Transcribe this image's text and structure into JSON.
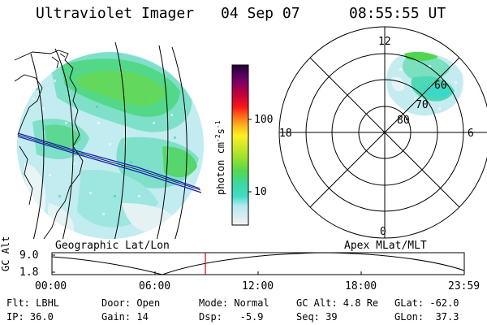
{
  "header": {
    "title": "Ultraviolet Imager",
    "date": "04 Sep 07",
    "time": "08:55:55 UT"
  },
  "geo_panel": {
    "label": "Geographic Lat/Lon"
  },
  "colorbar": {
    "unit": "photon cm",
    "unit_sup1": "-2",
    "unit_s": "s",
    "unit_sup2": "-1",
    "ticks": [
      "100",
      "10"
    ],
    "scale": "log",
    "colors": [
      "#f0f0f0",
      "#e0f0f4",
      "#c8ecf0",
      "#7de6dc",
      "#34dcc8",
      "#3fd8a8",
      "#4ed86a",
      "#78de3a",
      "#a8e42a",
      "#d8ec28",
      "#fff020",
      "#ffc01e",
      "#ff8e1a",
      "#ff3a14",
      "#e40c1e",
      "#b4004a",
      "#70006a",
      "#2c004a"
    ]
  },
  "polar_panel": {
    "label": "Apex MLat/MLT",
    "mlt_labels": {
      "top": "12",
      "bottom": "0",
      "left": "18",
      "right": "6"
    },
    "lat_labels": [
      "60",
      "70",
      "80"
    ]
  },
  "timeline": {
    "ylabel": "GC Alt",
    "yticks": [
      "9.0",
      "1.8"
    ],
    "xticks": [
      "00:00",
      "06:00",
      "12:00",
      "18:00",
      "23:59"
    ],
    "marker_time_hours": 8.93
  },
  "info": {
    "flt": "Flt: LBHL",
    "ip": "IP: 36.0",
    "door": "Door: Open",
    "gain": "Gain: 14",
    "mode": "Mode: Normal",
    "dsp_label": "Dsp:",
    "dsp_value": "-5.9",
    "gc_alt": "GC Alt: 4.8 Re",
    "seq": "Seq: 39",
    "glat": "GLat: -62.0",
    "glon": "GLon:  37.3"
  }
}
